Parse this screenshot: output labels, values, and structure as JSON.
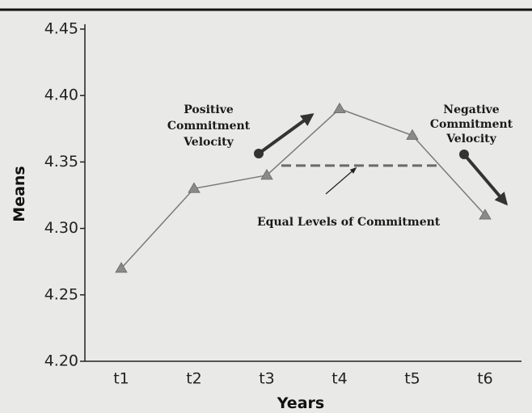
{
  "chart_data": {
    "type": "line",
    "xlabel": "Years",
    "ylabel": "Means",
    "categories": [
      "t1",
      "t2",
      "t3",
      "t4",
      "t5",
      "t6"
    ],
    "values": [
      4.27,
      4.33,
      4.34,
      4.39,
      4.37,
      4.31
    ],
    "color": "#7a7a7a",
    "ylim": [
      4.2,
      4.45
    ],
    "yticks": [
      {
        "value": 4.2,
        "label": "4.20"
      },
      {
        "value": 4.25,
        "label": "4.25"
      },
      {
        "value": 4.3,
        "label": "4.30"
      },
      {
        "value": 4.35,
        "label": "4.35"
      },
      {
        "value": 4.4,
        "label": "4.40"
      },
      {
        "value": 4.45,
        "label": "4.45"
      }
    ],
    "annotations": [
      {
        "lines": [
          "Positive",
          "Commitment",
          "Velocity"
        ]
      },
      {
        "lines": [
          "Negative",
          "Commitment",
          "Velocity"
        ]
      },
      {
        "lines": [
          "Equal Levels of Commitment"
        ]
      }
    ]
  }
}
